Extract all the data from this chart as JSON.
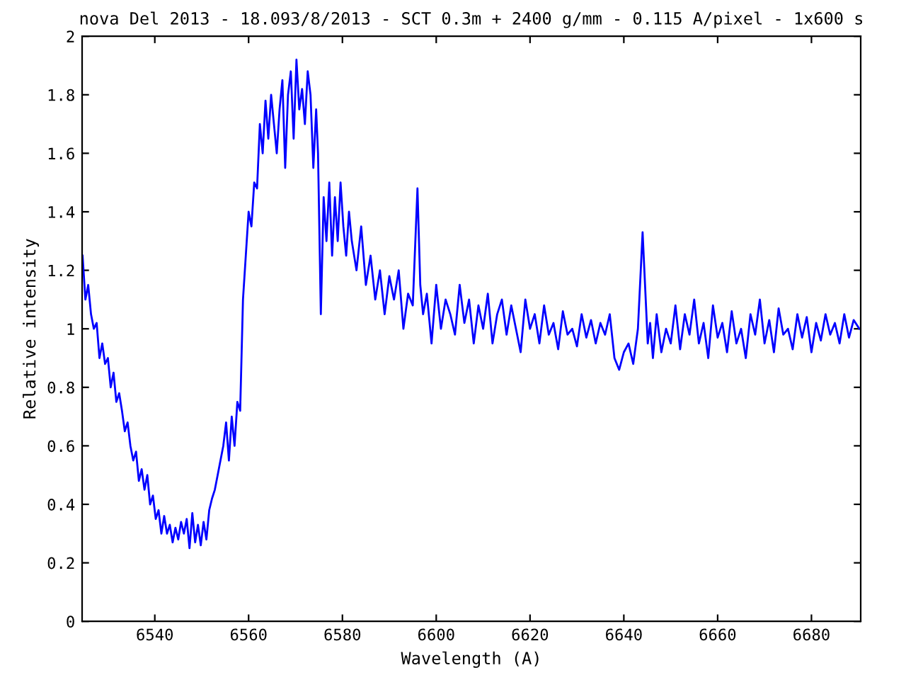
{
  "chart_data": {
    "type": "line",
    "title": "nova Del 2013 - 18.093/8/2013 - SCT 0.3m + 2400 g/mm - 0.115 A/pixel - 1x600 s",
    "xlabel": "Wavelength (A)",
    "ylabel": "Relative intensity",
    "x": [
      6524.6,
      6525.2,
      6525.8,
      6526.4,
      6527.0,
      6527.6,
      6528.2,
      6528.8,
      6529.4,
      6530.0,
      6530.6,
      6531.2,
      6531.8,
      6532.4,
      6533.0,
      6533.6,
      6534.2,
      6534.8,
      6535.4,
      6536.0,
      6536.6,
      6537.2,
      6537.8,
      6538.4,
      6539.0,
      6539.6,
      6540.2,
      6540.8,
      6541.4,
      6542.0,
      6542.6,
      6543.2,
      6543.8,
      6544.4,
      6545.0,
      6545.6,
      6546.2,
      6546.8,
      6547.4,
      6548.0,
      6548.6,
      6549.2,
      6549.8,
      6550.4,
      6551.0,
      6551.6,
      6552.2,
      6552.8,
      6553.4,
      6554.0,
      6554.6,
      6555.2,
      6555.8,
      6556.4,
      6557.0,
      6557.6,
      6558.2,
      6558.8,
      6559.4,
      6560.0,
      6560.6,
      6561.2,
      6561.8,
      6562.4,
      6563.0,
      6563.6,
      6564.2,
      6564.8,
      6565.4,
      6566.0,
      6566.6,
      6567.2,
      6567.8,
      6568.4,
      6569.0,
      6569.6,
      6570.2,
      6570.8,
      6571.4,
      6572.0,
      6572.6,
      6573.2,
      6573.8,
      6574.4,
      6574.8,
      6575.4,
      6576.0,
      6576.6,
      6577.2,
      6577.8,
      6578.4,
      6579.0,
      6579.6,
      6580.2,
      6580.8,
      6581.4,
      6582.0,
      6583.0,
      6584.0,
      6585.0,
      6586.0,
      6587.0,
      6588.0,
      6589.0,
      6590.0,
      6591.0,
      6592.0,
      6593.0,
      6594.0,
      6595.0,
      6596.0,
      6596.6,
      6597.2,
      6598.0,
      6599.0,
      6600.0,
      6601.0,
      6602.0,
      6603.0,
      6604.0,
      6605.0,
      6606.0,
      6607.0,
      6608.0,
      6609.0,
      6610.0,
      6611.0,
      6612.0,
      6613.0,
      6614.0,
      6615.0,
      6616.0,
      6617.0,
      6618.0,
      6619.0,
      6620.0,
      6621.0,
      6622.0,
      6623.0,
      6624.0,
      6625.0,
      6626.0,
      6627.0,
      6628.0,
      6629.0,
      6630.0,
      6631.0,
      6632.0,
      6633.0,
      6634.0,
      6635.0,
      6636.0,
      6637.0,
      6638.0,
      6639.0,
      6640.0,
      6641.0,
      6642.0,
      6643.0,
      6644.0,
      6645.1,
      6645.6,
      6646.2,
      6647.0,
      6648.0,
      6649.0,
      6650.0,
      6651.0,
      6652.0,
      6653.0,
      6654.0,
      6655.0,
      6656.0,
      6657.0,
      6658.0,
      6659.0,
      6660.0,
      6661.0,
      6662.0,
      6663.0,
      6664.0,
      6665.0,
      6666.0,
      6667.0,
      6668.0,
      6669.0,
      6670.0,
      6671.0,
      6672.0,
      6673.0,
      6674.0,
      6675.0,
      6676.0,
      6677.0,
      6678.0,
      6679.0,
      6680.0,
      6681.0,
      6682.0,
      6683.0,
      6684.0,
      6685.0,
      6686.0,
      6687.0,
      6688.0,
      6689.0,
      6690.2
    ],
    "series": [
      {
        "color": "#0000ff",
        "values": [
          1.25,
          1.1,
          1.15,
          1.05,
          1.0,
          1.02,
          0.9,
          0.95,
          0.88,
          0.9,
          0.8,
          0.85,
          0.75,
          0.78,
          0.72,
          0.65,
          0.68,
          0.6,
          0.55,
          0.58,
          0.48,
          0.52,
          0.45,
          0.5,
          0.4,
          0.43,
          0.35,
          0.38,
          0.3,
          0.36,
          0.3,
          0.33,
          0.27,
          0.32,
          0.28,
          0.34,
          0.3,
          0.35,
          0.25,
          0.37,
          0.27,
          0.33,
          0.26,
          0.34,
          0.28,
          0.38,
          0.42,
          0.45,
          0.5,
          0.55,
          0.6,
          0.68,
          0.55,
          0.7,
          0.6,
          0.75,
          0.72,
          1.1,
          1.25,
          1.4,
          1.35,
          1.5,
          1.48,
          1.7,
          1.6,
          1.78,
          1.65,
          1.8,
          1.7,
          1.6,
          1.75,
          1.85,
          1.55,
          1.8,
          1.88,
          1.65,
          1.92,
          1.75,
          1.82,
          1.7,
          1.88,
          1.8,
          1.55,
          1.75,
          1.6,
          1.05,
          1.45,
          1.3,
          1.5,
          1.25,
          1.45,
          1.3,
          1.5,
          1.35,
          1.25,
          1.4,
          1.3,
          1.2,
          1.35,
          1.15,
          1.25,
          1.1,
          1.2,
          1.05,
          1.18,
          1.1,
          1.2,
          1.0,
          1.12,
          1.08,
          1.48,
          1.15,
          1.05,
          1.12,
          0.95,
          1.15,
          1.0,
          1.1,
          1.05,
          0.98,
          1.15,
          1.02,
          1.1,
          0.95,
          1.08,
          1.0,
          1.12,
          0.95,
          1.05,
          1.1,
          0.98,
          1.08,
          1.0,
          0.92,
          1.1,
          1.0,
          1.05,
          0.95,
          1.08,
          0.98,
          1.02,
          0.93,
          1.06,
          0.98,
          1.0,
          0.94,
          1.05,
          0.97,
          1.03,
          0.95,
          1.02,
          0.98,
          1.05,
          0.9,
          0.86,
          0.92,
          0.95,
          0.88,
          1.0,
          1.33,
          0.95,
          1.02,
          0.9,
          1.05,
          0.92,
          1.0,
          0.95,
          1.08,
          0.93,
          1.05,
          0.98,
          1.1,
          0.95,
          1.02,
          0.9,
          1.08,
          0.97,
          1.02,
          0.92,
          1.06,
          0.95,
          1.0,
          0.9,
          1.05,
          0.98,
          1.1,
          0.95,
          1.03,
          0.92,
          1.07,
          0.98,
          1.0,
          0.93,
          1.05,
          0.97,
          1.04,
          0.92,
          1.02,
          0.96,
          1.05,
          0.98,
          1.02,
          0.95,
          1.05,
          0.97,
          1.03,
          1.0
        ]
      }
    ],
    "xlim": [
      6524.5,
      6690.5
    ],
    "xticks": [
      6540,
      6560,
      6580,
      6600,
      6620,
      6640,
      6660,
      6680
    ],
    "ylim": [
      0,
      2
    ],
    "yticks": [
      0,
      0.2,
      0.4,
      0.6,
      0.8,
      1,
      1.2,
      1.4,
      1.6,
      1.8,
      2
    ],
    "grid": false,
    "legend": false
  }
}
